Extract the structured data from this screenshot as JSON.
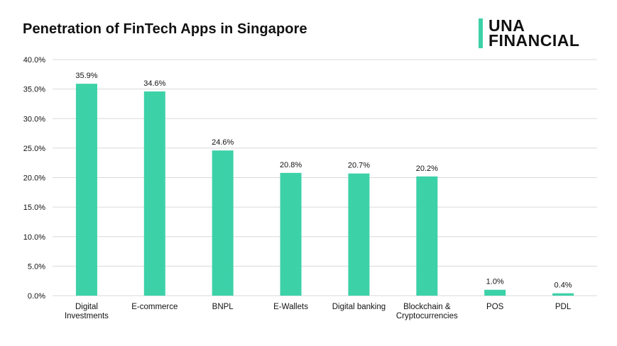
{
  "logo": {
    "line1": "UNA",
    "line2": "FINANCIAL",
    "accent_color": "#3dd1a8"
  },
  "chart_data": {
    "type": "bar",
    "title": "Penetration of FinTech Apps in Singapore",
    "xlabel": "",
    "ylabel": "",
    "categories": [
      [
        "Digital",
        "Investments"
      ],
      [
        "E-commerce"
      ],
      [
        "BNPL"
      ],
      [
        "E-Wallets"
      ],
      [
        "Digital banking"
      ],
      [
        "Blockchain &",
        "Cryptocurrencies"
      ],
      [
        "POS"
      ],
      [
        "PDL"
      ]
    ],
    "values": [
      35.9,
      34.6,
      24.6,
      20.8,
      20.7,
      20.2,
      1.0,
      0.4
    ],
    "data_labels": [
      "35.9%",
      "34.6%",
      "24.6%",
      "20.8%",
      "20.7%",
      "20.2%",
      "1.0%",
      "0.4%"
    ],
    "ylim": [
      0,
      40
    ],
    "yticks": [
      "0.0%",
      "5.0%",
      "10.0%",
      "15.0%",
      "20.0%",
      "25.0%",
      "30.0%",
      "35.0%",
      "40.0%"
    ],
    "grid": true,
    "legend": "none",
    "bar_color": "#3dd1a8",
    "grid_color": "#d9d9d9"
  }
}
